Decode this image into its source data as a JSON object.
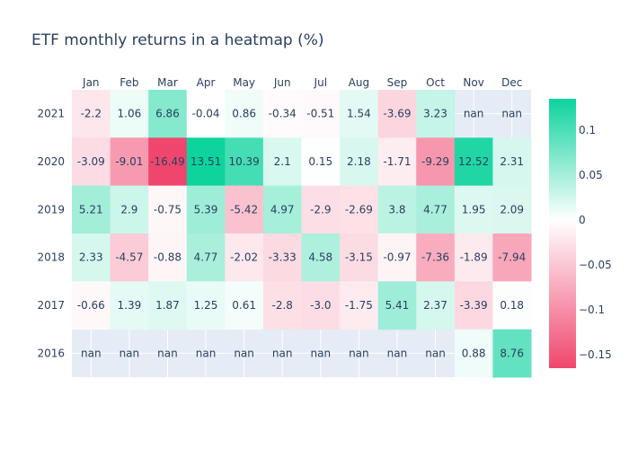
{
  "chart_data": {
    "type": "heatmap",
    "title": "ETF monthly returns in a heatmap (%)",
    "xlabel": "",
    "ylabel": "",
    "x_categories": [
      "Jan",
      "Feb",
      "Mar",
      "Apr",
      "May",
      "Jun",
      "Jul",
      "Aug",
      "Sep",
      "Oct",
      "Nov",
      "Dec"
    ],
    "y_categories": [
      "2021",
      "2020",
      "2019",
      "2018",
      "2017",
      "2016"
    ],
    "values": [
      [
        -2.2,
        1.06,
        6.86,
        -0.04,
        0.86,
        -0.34,
        -0.51,
        1.54,
        -3.69,
        3.23,
        null,
        null
      ],
      [
        -3.09,
        -9.01,
        -16.49,
        13.51,
        10.39,
        2.1,
        0.15,
        2.18,
        -1.71,
        -9.29,
        12.52,
        2.31
      ],
      [
        5.21,
        2.9,
        -0.75,
        5.39,
        -5.42,
        4.97,
        -2.9,
        -2.69,
        3.8,
        4.77,
        1.95,
        2.09
      ],
      [
        2.33,
        -4.57,
        -0.88,
        4.77,
        -2.02,
        -3.33,
        4.58,
        -3.15,
        -0.97,
        -7.36,
        -1.89,
        -7.94
      ],
      [
        -0.66,
        1.39,
        1.87,
        1.25,
        0.61,
        -2.8,
        -3.0,
        -1.75,
        5.41,
        2.37,
        -3.39,
        0.18
      ],
      [
        null,
        null,
        null,
        null,
        null,
        null,
        null,
        null,
        null,
        null,
        0.88,
        8.76
      ]
    ],
    "text_labels": [
      [
        "-2.2",
        "1.06",
        "6.86",
        "-0.04",
        "0.86",
        "-0.34",
        "-0.51",
        "1.54",
        "-3.69",
        "3.23",
        "nan",
        "nan"
      ],
      [
        "-3.09",
        "-9.01",
        "-16.49",
        "13.51",
        "10.39",
        "2.1",
        "0.15",
        "2.18",
        "-1.71",
        "-9.29",
        "12.52",
        "2.31"
      ],
      [
        "5.21",
        "2.9",
        "-0.75",
        "5.39",
        "-5.42",
        "4.97",
        "-2.9",
        "-2.69",
        "3.8",
        "4.77",
        "1.95",
        "2.09"
      ],
      [
        "2.33",
        "-4.57",
        "-0.88",
        "4.77",
        "-2.02",
        "-3.33",
        "4.58",
        "-3.15",
        "-0.97",
        "-7.36",
        "-1.89",
        "-7.94"
      ],
      [
        "-0.66",
        "1.39",
        "1.87",
        "1.25",
        "0.61",
        "-2.8",
        "-3.0",
        "-1.75",
        "5.41",
        "2.37",
        "-3.39",
        "0.18"
      ],
      [
        "nan",
        "nan",
        "nan",
        "nan",
        "nan",
        "nan",
        "nan",
        "nan",
        "nan",
        "nan",
        "0.88",
        "8.76"
      ]
    ],
    "colorscale": {
      "negative_color": "#f0466e",
      "zero_color": "#ffffff",
      "positive_color": "#0dd39d",
      "zmin": -0.165,
      "zmax": 0.135
    },
    "colorbar": {
      "ticks": [
        0.1,
        0.05,
        0,
        -0.05,
        -0.1,
        -0.15
      ],
      "tick_labels": [
        "0.1",
        "0.05",
        "0",
        "−0.05",
        "−0.1",
        "−0.15"
      ],
      "placement": "right"
    },
    "x_axis_position": "top",
    "background_color": "#e5ecf6",
    "grid": true
  }
}
